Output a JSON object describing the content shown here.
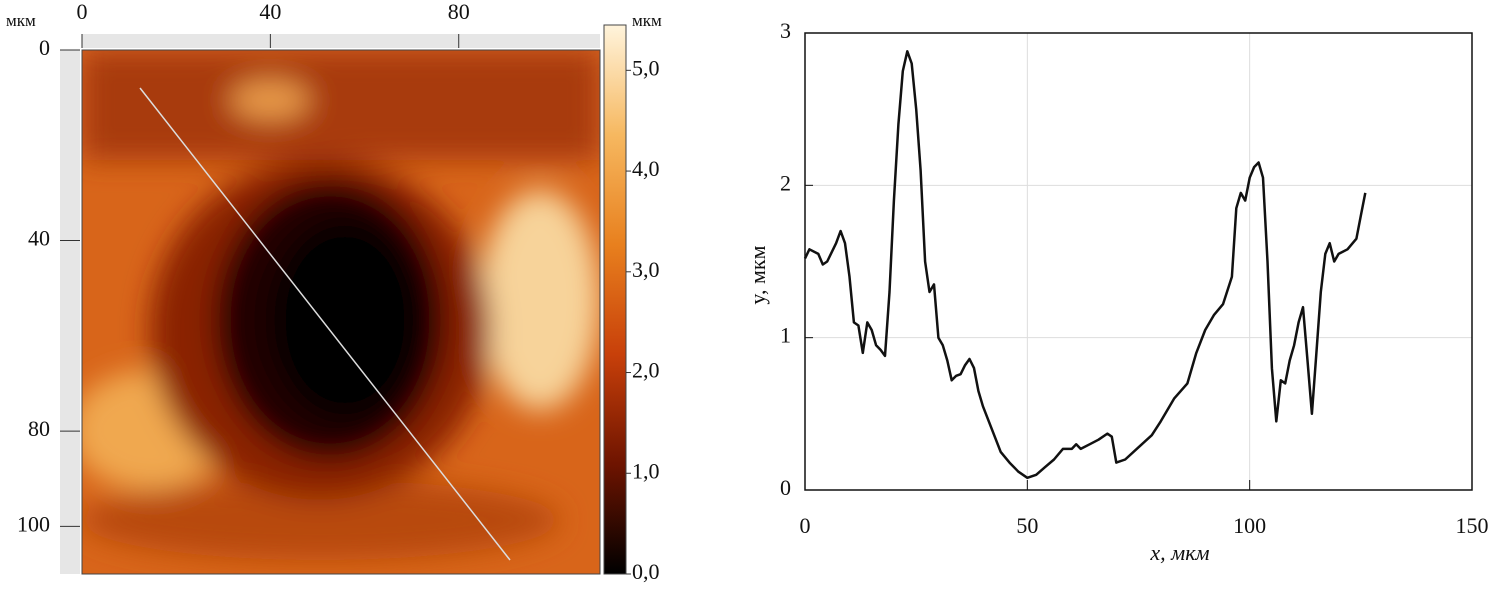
{
  "chart_data": [
    {
      "type": "heatmap",
      "x_label": "мкм",
      "colorbar_label": "мкм",
      "xlim": [
        0,
        110
      ],
      "xticks": [
        0,
        40,
        80
      ],
      "ylim": [
        0,
        110
      ],
      "yticks": [
        0,
        40,
        80,
        100
      ],
      "clim": [
        0,
        5.45
      ],
      "cticks": [
        {
          "value": 0,
          "label": "0,0"
        },
        {
          "value": 1,
          "label": "1,0"
        },
        {
          "value": 2,
          "label": "2,0"
        },
        {
          "value": 3,
          "label": "3,0"
        },
        {
          "value": 4,
          "label": "4,0"
        },
        {
          "value": 5,
          "label": "5,0"
        }
      ],
      "colormap": [
        "#000000",
        "#6e1400",
        "#c8400a",
        "#e8801e",
        "#f6b860",
        "#fff4dc"
      ]
    },
    {
      "type": "line",
      "x_label": "x, мкм",
      "y_label": "y, мкм",
      "xlim": [
        0,
        150
      ],
      "xticks": [
        0,
        50,
        100,
        150
      ],
      "ylim": [
        0,
        3
      ],
      "yticks": [
        0,
        1,
        2,
        3
      ],
      "grid": true,
      "series": [
        {
          "color": "#111111",
          "x": [
            0,
            1,
            3,
            4,
            5,
            7,
            8,
            9,
            10,
            11,
            12,
            13,
            14,
            15,
            16,
            17,
            18,
            19,
            20,
            21,
            22,
            23,
            24,
            25,
            26,
            27,
            28,
            29,
            30,
            31,
            32,
            33,
            34,
            35,
            36,
            37,
            38,
            39,
            40,
            42,
            44,
            46,
            48,
            50,
            52,
            54,
            56,
            58,
            60,
            61,
            62,
            64,
            66,
            68,
            69,
            70,
            72,
            75,
            78,
            80,
            83,
            86,
            88,
            90,
            92,
            94,
            96,
            97,
            98,
            99,
            100,
            101,
            102,
            103,
            104,
            105,
            106,
            107,
            108,
            109,
            110,
            111,
            112,
            113,
            114,
            115,
            116,
            117,
            118,
            119,
            120,
            122,
            124,
            125,
            126
          ],
          "values": [
            1.52,
            1.58,
            1.55,
            1.48,
            1.5,
            1.62,
            1.7,
            1.62,
            1.4,
            1.1,
            1.08,
            0.9,
            1.1,
            1.05,
            0.95,
            0.92,
            0.88,
            1.3,
            1.9,
            2.4,
            2.75,
            2.88,
            2.8,
            2.5,
            2.1,
            1.5,
            1.3,
            1.35,
            1.0,
            0.95,
            0.85,
            0.72,
            0.75,
            0.76,
            0.82,
            0.86,
            0.8,
            0.65,
            0.55,
            0.4,
            0.25,
            0.18,
            0.12,
            0.08,
            0.1,
            0.15,
            0.2,
            0.27,
            0.27,
            0.3,
            0.27,
            0.3,
            0.33,
            0.37,
            0.35,
            0.18,
            0.2,
            0.28,
            0.36,
            0.45,
            0.6,
            0.7,
            0.9,
            1.05,
            1.15,
            1.22,
            1.4,
            1.85,
            1.95,
            1.9,
            2.05,
            2.12,
            2.15,
            2.05,
            1.5,
            0.8,
            0.45,
            0.72,
            0.7,
            0.85,
            0.95,
            1.1,
            1.2,
            0.85,
            0.5,
            0.9,
            1.3,
            1.55,
            1.62,
            1.5,
            1.55,
            1.58,
            1.65,
            1.8,
            1.95
          ]
        }
      ]
    }
  ]
}
